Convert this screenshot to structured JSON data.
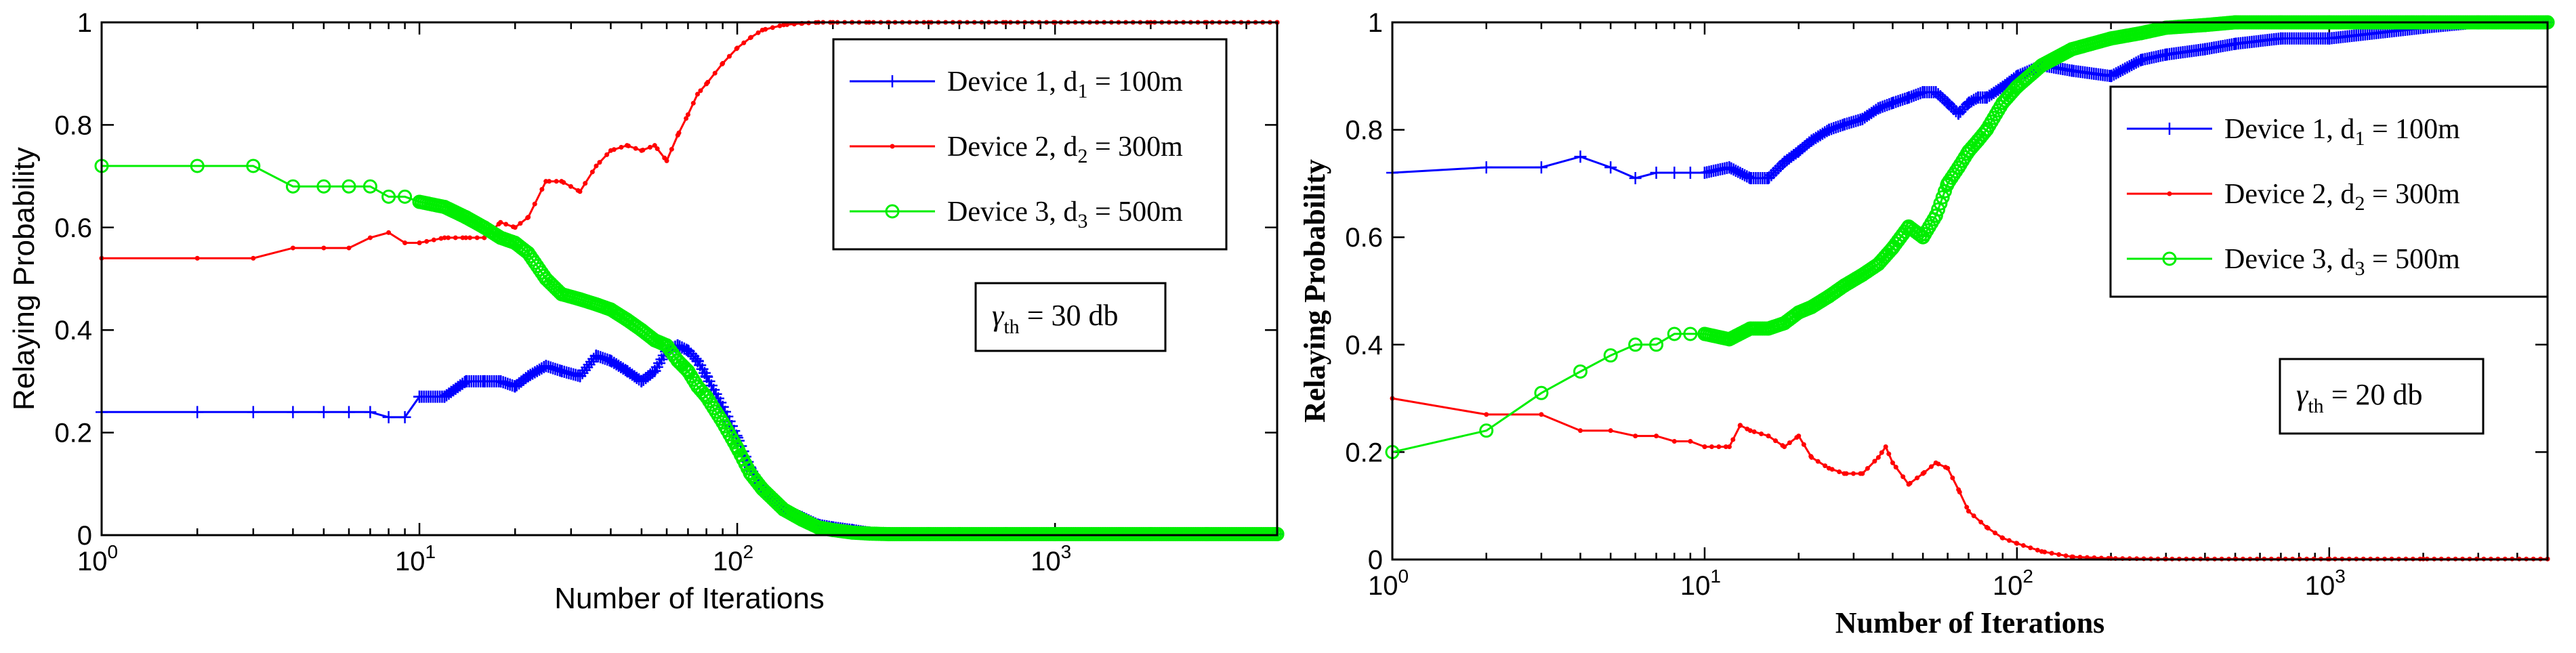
{
  "chart_data": [
    {
      "type": "line",
      "xscale": "log",
      "xlim": [
        1,
        5000
      ],
      "ylim": [
        0,
        1
      ],
      "xlabel": "Number of Iterations",
      "ylabel": "Relaying Probability",
      "xticks": [
        {
          "base": "10",
          "exp": "0"
        },
        {
          "base": "10",
          "exp": "1"
        },
        {
          "base": "10",
          "exp": "2"
        },
        {
          "base": "10",
          "exp": "3"
        }
      ],
      "yticks": [
        "0",
        "0.2",
        "0.4",
        "0.6",
        "0.8",
        "1"
      ],
      "annotation": {
        "gamma": "γ",
        "sub": "th",
        "rest": " = 30 db"
      },
      "legend_position": "top-right",
      "series": [
        {
          "name": "Device 1, d1 = 100m",
          "label_main": "Device 1, d",
          "label_sub": "1",
          "label_rest": " = 100m",
          "color": "#0000ff",
          "marker": "plus",
          "x": [
            1,
            2,
            3,
            4,
            5,
            6,
            7,
            8,
            9,
            10,
            12,
            14,
            16,
            18,
            20,
            22,
            25,
            28,
            32,
            36,
            40,
            45,
            50,
            55,
            60,
            65,
            70,
            75,
            80,
            90,
            100,
            110,
            120,
            140,
            160,
            180,
            200,
            230,
            260,
            300,
            400,
            500,
            700,
            1000,
            2000,
            3000,
            5000
          ],
          "y": [
            0.24,
            0.24,
            0.24,
            0.24,
            0.24,
            0.24,
            0.24,
            0.23,
            0.23,
            0.27,
            0.27,
            0.3,
            0.3,
            0.3,
            0.29,
            0.31,
            0.33,
            0.32,
            0.31,
            0.35,
            0.34,
            0.32,
            0.3,
            0.32,
            0.36,
            0.37,
            0.36,
            0.34,
            0.31,
            0.25,
            0.19,
            0.13,
            0.09,
            0.05,
            0.035,
            0.02,
            0.015,
            0.01,
            0.005,
            0.003,
            0.002,
            0.002,
            0.002,
            0.002,
            0.002,
            0.002,
            0.002
          ]
        },
        {
          "name": "Device 2, d2 = 300m",
          "label_main": "Device 2, d",
          "label_sub": "2",
          "label_rest": " = 300m",
          "color": "#ff0000",
          "marker": "dot",
          "x": [
            1,
            2,
            3,
            4,
            5,
            6,
            7,
            8,
            9,
            10,
            12,
            14,
            16,
            18,
            20,
            22,
            25,
            28,
            32,
            36,
            40,
            45,
            50,
            55,
            60,
            65,
            70,
            75,
            80,
            90,
            100,
            110,
            120,
            140,
            160,
            180,
            200,
            230,
            260,
            300,
            400,
            500,
            700,
            1000,
            2000,
            3000,
            5000
          ],
          "y": [
            0.54,
            0.54,
            0.54,
            0.56,
            0.56,
            0.56,
            0.58,
            0.59,
            0.57,
            0.57,
            0.58,
            0.58,
            0.58,
            0.61,
            0.6,
            0.62,
            0.69,
            0.69,
            0.67,
            0.72,
            0.75,
            0.76,
            0.75,
            0.76,
            0.73,
            0.78,
            0.82,
            0.86,
            0.88,
            0.92,
            0.95,
            0.97,
            0.985,
            0.995,
            0.998,
            1.0,
            1.0,
            1.0,
            1.0,
            1.0,
            1.0,
            1.0,
            1.0,
            1.0,
            1.0,
            1.0,
            1.0
          ]
        },
        {
          "name": "Device 3, d3 = 500m",
          "label_main": "Device 3, d",
          "label_sub": "3",
          "label_rest": " = 500m",
          "color": "#00ee00",
          "marker": "circle",
          "x": [
            1,
            2,
            3,
            4,
            5,
            6,
            7,
            8,
            9,
            10,
            12,
            14,
            16,
            18,
            20,
            22,
            25,
            28,
            32,
            36,
            40,
            45,
            50,
            55,
            60,
            65,
            70,
            75,
            80,
            90,
            100,
            110,
            120,
            140,
            160,
            180,
            200,
            230,
            260,
            300,
            400,
            500,
            700,
            1000,
            2000,
            3000,
            5000
          ],
          "y": [
            0.72,
            0.72,
            0.72,
            0.68,
            0.68,
            0.68,
            0.68,
            0.66,
            0.66,
            0.65,
            0.64,
            0.62,
            0.6,
            0.58,
            0.57,
            0.55,
            0.5,
            0.47,
            0.46,
            0.45,
            0.44,
            0.42,
            0.4,
            0.38,
            0.37,
            0.34,
            0.32,
            0.29,
            0.27,
            0.22,
            0.17,
            0.12,
            0.09,
            0.05,
            0.03,
            0.015,
            0.01,
            0.005,
            0.003,
            0.002,
            0.002,
            0.002,
            0.002,
            0.002,
            0.002,
            0.002,
            0.002
          ]
        }
      ]
    },
    {
      "type": "line",
      "xscale": "log",
      "xlim": [
        1,
        5000
      ],
      "ylim": [
        0,
        1
      ],
      "xlabel": "Number of Iterations",
      "ylabel": "Relaying Probability",
      "xticks": [
        {
          "base": "10",
          "exp": "0"
        },
        {
          "base": "10",
          "exp": "1"
        },
        {
          "base": "10",
          "exp": "2"
        },
        {
          "base": "10",
          "exp": "3"
        }
      ],
      "yticks": [
        "0",
        "0.2",
        "0.4",
        "0.6",
        "0.8",
        "1"
      ],
      "annotation": {
        "gamma": "γ",
        "sub": "th",
        "rest": " = 20 db"
      },
      "legend_position": "top-right",
      "series": [
        {
          "name": "Device 1, d1 = 100m",
          "label_main": "Device 1, d",
          "label_sub": "1",
          "label_rest": " = 100m",
          "color": "#0000ff",
          "marker": "plus",
          "x": [
            1,
            2,
            3,
            4,
            5,
            6,
            7,
            8,
            9,
            10,
            12,
            14,
            16,
            18,
            20,
            22,
            25,
            28,
            32,
            36,
            40,
            45,
            50,
            55,
            60,
            65,
            70,
            75,
            80,
            90,
            100,
            120,
            150,
            200,
            250,
            300,
            400,
            500,
            700,
            1000,
            2000,
            3000,
            5000
          ],
          "y": [
            0.72,
            0.73,
            0.73,
            0.75,
            0.73,
            0.71,
            0.72,
            0.72,
            0.72,
            0.72,
            0.73,
            0.71,
            0.71,
            0.74,
            0.76,
            0.78,
            0.8,
            0.81,
            0.82,
            0.84,
            0.85,
            0.86,
            0.87,
            0.87,
            0.85,
            0.83,
            0.85,
            0.86,
            0.86,
            0.88,
            0.9,
            0.92,
            0.91,
            0.9,
            0.93,
            0.94,
            0.95,
            0.96,
            0.97,
            0.97,
            0.99,
            1.0,
            1.0
          ]
        },
        {
          "name": "Device 2, d2 = 300m",
          "label_main": "Device 2, d",
          "label_sub": "2",
          "label_rest": " = 300m",
          "color": "#ff0000",
          "marker": "dot",
          "x": [
            1,
            2,
            3,
            4,
            5,
            6,
            7,
            8,
            9,
            10,
            12,
            13,
            14,
            16,
            18,
            20,
            22,
            25,
            28,
            32,
            36,
            38,
            40,
            45,
            50,
            55,
            60,
            65,
            70,
            80,
            90,
            100,
            120,
            150,
            200,
            300,
            500,
            1000,
            2000,
            5000
          ],
          "y": [
            0.3,
            0.27,
            0.27,
            0.24,
            0.24,
            0.23,
            0.23,
            0.22,
            0.22,
            0.21,
            0.21,
            0.25,
            0.24,
            0.23,
            0.21,
            0.23,
            0.19,
            0.17,
            0.16,
            0.16,
            0.19,
            0.21,
            0.18,
            0.14,
            0.16,
            0.18,
            0.17,
            0.13,
            0.09,
            0.06,
            0.04,
            0.03,
            0.015,
            0.005,
            0.002,
            0.001,
            0.001,
            0.001,
            0.001,
            0.001
          ]
        },
        {
          "name": "Device 3, d3 = 500m",
          "label_main": "Device 3, d",
          "label_sub": "3",
          "label_rest": " = 500m",
          "color": "#00ee00",
          "marker": "circle",
          "x": [
            1,
            2,
            3,
            4,
            5,
            6,
            7,
            8,
            9,
            10,
            12,
            14,
            16,
            18,
            20,
            22,
            25,
            28,
            32,
            36,
            40,
            45,
            50,
            55,
            60,
            65,
            70,
            75,
            80,
            90,
            100,
            120,
            150,
            200,
            250,
            300,
            400,
            500,
            700,
            1000,
            2000,
            3000,
            5000
          ],
          "y": [
            0.2,
            0.24,
            0.31,
            0.35,
            0.38,
            0.4,
            0.4,
            0.42,
            0.42,
            0.42,
            0.41,
            0.43,
            0.43,
            0.44,
            0.46,
            0.47,
            0.49,
            0.51,
            0.53,
            0.55,
            0.58,
            0.62,
            0.6,
            0.64,
            0.7,
            0.73,
            0.76,
            0.78,
            0.8,
            0.85,
            0.88,
            0.92,
            0.95,
            0.97,
            0.98,
            0.99,
            0.995,
            1.0,
            1.0,
            1.0,
            1.0,
            1.0,
            1.0
          ]
        }
      ]
    }
  ]
}
